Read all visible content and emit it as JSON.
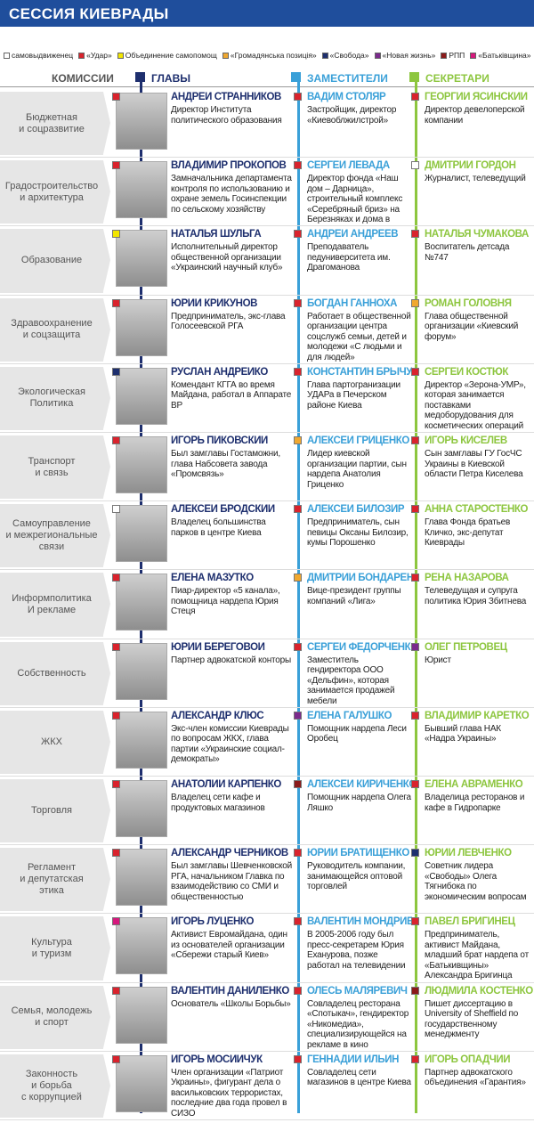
{
  "header": {
    "title": "СЕССИЯ КИЕВРАДЫ"
  },
  "legend": [
    {
      "label": "самовыдвиженец",
      "color": "#ffffff"
    },
    {
      "label": "«Удар»",
      "color": "#d9232d"
    },
    {
      "label": "Объединение самопомощ",
      "color": "#f2e600"
    },
    {
      "label": "«Громадянська позиція»",
      "color": "#f0a830"
    },
    {
      "label": "«Свобода»",
      "color": "#1e2f6e"
    },
    {
      "label": "«Новая жизнь»",
      "color": "#7b2a8c"
    },
    {
      "label": "РПП",
      "color": "#8b1a1a"
    },
    {
      "label": "«Батьківщина»",
      "color": "#d6187d"
    }
  ],
  "columns": [
    "КОМИССИИ",
    "ГЛАВЫ",
    "ЗАМЕСТИТЕЛИ",
    "СЕКРЕТАРИ"
  ],
  "rows": [
    {
      "commission": "Бюджетная\nи соцразвитие",
      "head": {
        "name": "АНДРЕЙ СТРАННИКОВ",
        "description": "Директор Института политического образования",
        "color": "#d9232d"
      },
      "deputy": {
        "name": "ВАДИМ СТОЛЯР",
        "description": "Застройщик, директор «Киевоблжилстрой»",
        "color": "#d9232d"
      },
      "secretary": {
        "name": "ГЕОРГИЙ ЯСИНСКИЙ",
        "description": "Директор девелоперской компании",
        "color": "#d9232d"
      }
    },
    {
      "commission": "Градостроительство\nи архитектура",
      "head": {
        "name": "ВЛАДИМИР ПРОКОПОВ",
        "description": "Замначальника департамента контроля по использованию и охране земель Госинспекции по сельскому хозяйству",
        "color": "#d9232d"
      },
      "deputy": {
        "name": "СЕРГЕЙ ЛЕВАДА",
        "description": "Директор фонда «Наш дом – Дарница», строительный комплекс «Серебряный бриз» на Березняках и дома в Дарнице",
        "color": "#d9232d"
      },
      "secretary": {
        "name": "ДМИТРИЙ ГОРДОН",
        "description": "Журналист, телеведущий",
        "color": "#ffffff"
      }
    },
    {
      "commission": "Образование",
      "head": {
        "name": "НАТАЛЬЯ ШУЛЬГА",
        "description": "Исполнительный директор общественной организации «Украинский научный клуб»",
        "color": "#f2e600"
      },
      "deputy": {
        "name": "АНДРЕЙ АНДРЕЕВ",
        "description": "Преподаватель педуниверситета им. Драгоманова",
        "color": "#d9232d"
      },
      "secretary": {
        "name": "НАТАЛЬЯ ЧУМАКОВА",
        "description": "Воспитатель детсада №747",
        "color": "#d9232d"
      }
    },
    {
      "commission": "Здравоохранение\nи соцзащита",
      "head": {
        "name": "ЮРИЙ КРИКУНОВ",
        "description": "Предприниматель, экс-глава Голосеевской РГА",
        "color": "#d9232d"
      },
      "deputy": {
        "name": "БОГДАН ГАННОХА",
        "description": "Работает в общественной организации центра соцслужб семьи, детей и молодежи «С людьми и для людей»",
        "color": "#d9232d"
      },
      "secretary": {
        "name": "РОМАН ГОЛОВНЯ",
        "description": "Глава общественной организации «Киевский форум»",
        "color": "#f0a830"
      }
    },
    {
      "commission": "Экологическая\nПолитика",
      "head": {
        "name": "РУСЛАН АНДРЕЙКО",
        "description": "Комендант КГГА во время Майдана, работал в Аппарате ВР",
        "color": "#1e2f6e"
      },
      "deputy": {
        "name": "КОНСТАНТИН БРЫЧУК",
        "description": "Глава партогранизации УДАРа в Печерском районе Киева",
        "color": "#d9232d"
      },
      "secretary": {
        "name": "СЕРГЕЙ КОСТЮК",
        "description": "Директор «Зерона-УМР», которая занимается поставками медоборудования для косметических операций",
        "color": "#d9232d"
      }
    },
    {
      "commission": "Транспорт\nи связь",
      "head": {
        "name": "ИГОРЬ ПИКОВСКИЙ",
        "description": "Был замглавы Гостаможни, глава Набсовета завода «Промсвязь»",
        "color": "#d9232d"
      },
      "deputy": {
        "name": "АЛЕКСЕЙ ГРИЦЕНКО",
        "description": "Лидер киевской организации партии, сын нардепа Анатолия Гриценко",
        "color": "#f0a830"
      },
      "secretary": {
        "name": "ИГОРЬ КИСЕЛЕВ",
        "description": "Сын замглавы ГУ ГосЧС Украины в Киевской области Петра Киселева",
        "color": "#d9232d"
      }
    },
    {
      "commission": "Самоуправление\nи межрегиональные\nсвязи",
      "head": {
        "name": "АЛЕКСЕЙ БРОДСКИЙ",
        "description": "Владелец большинства парков в центре Киева",
        "color": "#ffffff"
      },
      "deputy": {
        "name": "АЛЕКСЕЙ БИЛОЗИР",
        "description": "Предприниматель, сын певицы Оксаны Билозир, кумы Порошенко",
        "color": "#d9232d"
      },
      "secretary": {
        "name": "АННА СТАРОСТЕНКО",
        "description": "Глава Фонда братьев Кличко, экс-депутат Киеврады",
        "color": "#d9232d"
      }
    },
    {
      "commission": "Информполитика\nИ рекламе",
      "head": {
        "name": "ЕЛЕНА МАЗУТКО",
        "description": "Пиар-директор «5 канала», помощница нардепа Юрия Стеця",
        "color": "#d9232d"
      },
      "deputy": {
        "name": "ДМИТРИЙ БОНДАРЕНКО",
        "description": "Вице-президент группы компаний «Лига»",
        "color": "#f0a830"
      },
      "secretary": {
        "name": "РЕНА НАЗАРОВА",
        "description": "Телеведущая и супруга политика Юрия Збитнева",
        "color": "#d9232d"
      }
    },
    {
      "commission": "Собственность",
      "head": {
        "name": "ЮРИЙ БЕРЕГОВОЙ",
        "description": "Партнер адвокатской конторы",
        "color": "#d9232d"
      },
      "deputy": {
        "name": "СЕРГЕЙ ФЕДОРЧЕНКО",
        "description": "Заместитель гендиректора ООО «Дельфин», которая занимается продажей мебели",
        "color": "#d9232d"
      },
      "secretary": {
        "name": "ОЛЕГ ПЕТРОВЕЦ",
        "description": "Юрист",
        "color": "#7b2a8c"
      }
    },
    {
      "commission": "ЖКХ",
      "head": {
        "name": "АЛЕКСАНДР КЛЮС",
        "description": "Экс-член комиссии Киеврады по вопросам ЖКХ, глава партии «Украинские социал-демократы»",
        "color": "#d9232d"
      },
      "deputy": {
        "name": "ЕЛЕНА ГАЛУШКО",
        "description": "Помощник нардепа Леси Оробец",
        "color": "#7b2a8c"
      },
      "secretary": {
        "name": "ВЛАДИМИР КАРЕТКО",
        "description": "Бывший глава НАК «Надра Украины»",
        "color": "#d9232d"
      }
    },
    {
      "commission": "Торговля",
      "head": {
        "name": "АНАТОЛИЙ КАРПЕНКО",
        "description": "Владелец сети кафе и продуктовых магазинов",
        "color": "#d9232d"
      },
      "deputy": {
        "name": "АЛЕКСЕЙ КИРИЧЕНКО",
        "description": "Помощник нардепа Олега Ляшко",
        "color": "#8b1a1a"
      },
      "secretary": {
        "name": "ЕЛЕНА АВРАМЕНКО",
        "description": "Владелица ресторанов и кафе в Гидропарке",
        "color": "#d9232d"
      }
    },
    {
      "commission": "Регламент\nи депутатская\nэтика",
      "head": {
        "name": "АЛЕКСАНДР ЧЕРНИКОВ",
        "description": "Был замглавы Шевченковской РГА, начальником Главка по взаимодействию со СМИ и общественностью",
        "color": "#d9232d"
      },
      "deputy": {
        "name": "ЮРИЙ БРАТИЩЕНКО",
        "description": "Руководитель компании, занимающейся оптовой торговлей",
        "color": "#d9232d"
      },
      "secretary": {
        "name": "ЮРИЙ ЛЕВЧЕНКО",
        "description": "Советник лидера «Свободы» Олега Тягнибока по экономическим вопросам",
        "color": "#1e2f6e"
      }
    },
    {
      "commission": "Культура\nи туризм",
      "head": {
        "name": "ИГОРЬ ЛУЦЕНКО",
        "description": "Активист Евромайдана, один из основателей организации «Сбережи старый Киев»",
        "color": "#d6187d"
      },
      "deputy": {
        "name": "ВАЛЕНТИН МОНДРИЕВСКИЙ",
        "description": "В 2005-2006 году был пресс-секретарем Юрия Еханурова, позже работал на телевидении",
        "color": "#d9232d"
      },
      "secretary": {
        "name": "ПАВЕЛ БРИГИНЕЦ",
        "description": "Предприниматель, активист Майдана, младший брат нардепа от «Батькивщины» Александра Бригинца",
        "color": "#d9232d"
      }
    },
    {
      "commission": "Семья, молодежь\nи спорт",
      "head": {
        "name": "ВАЛЕНТИН ДАНИЛЕНКО",
        "description": "Основатель «Школы Борьбы»",
        "color": "#d9232d"
      },
      "deputy": {
        "name": "ОЛЕСЬ МАЛЯРЕВИЧ",
        "description": "Совладелец ресторана «Спотыкач», гендиректор «Никомедиа», специализирующейся на рекламе в кино",
        "color": "#d9232d"
      },
      "secretary": {
        "name": "ЛЮДМИЛА КОСТЕНКО",
        "description": "Пишет диссертацию в University of Sheffield по государственному менеджменту",
        "color": "#8b1a1a"
      }
    },
    {
      "commission": "Законность\nи борьба\nс коррупцией",
      "head": {
        "name": "ИГОРЬ МОСИЙЧУК",
        "description": "Член организации «Патриот Украины», фигурант дела о васильковских террористах, последние два года провел в СИЗО",
        "color": "#d9232d"
      },
      "deputy": {
        "name": "ГЕННАДИЙ ИЛЬИН",
        "description": "Совладелец сети магазинов в центре Киева",
        "color": "#d9232d"
      },
      "secretary": {
        "name": "ИГОРЬ ОПАДЧИЙ",
        "description": "Партнер адвокатского объединения «Гарантия»",
        "color": "#d9232d"
      }
    }
  ]
}
